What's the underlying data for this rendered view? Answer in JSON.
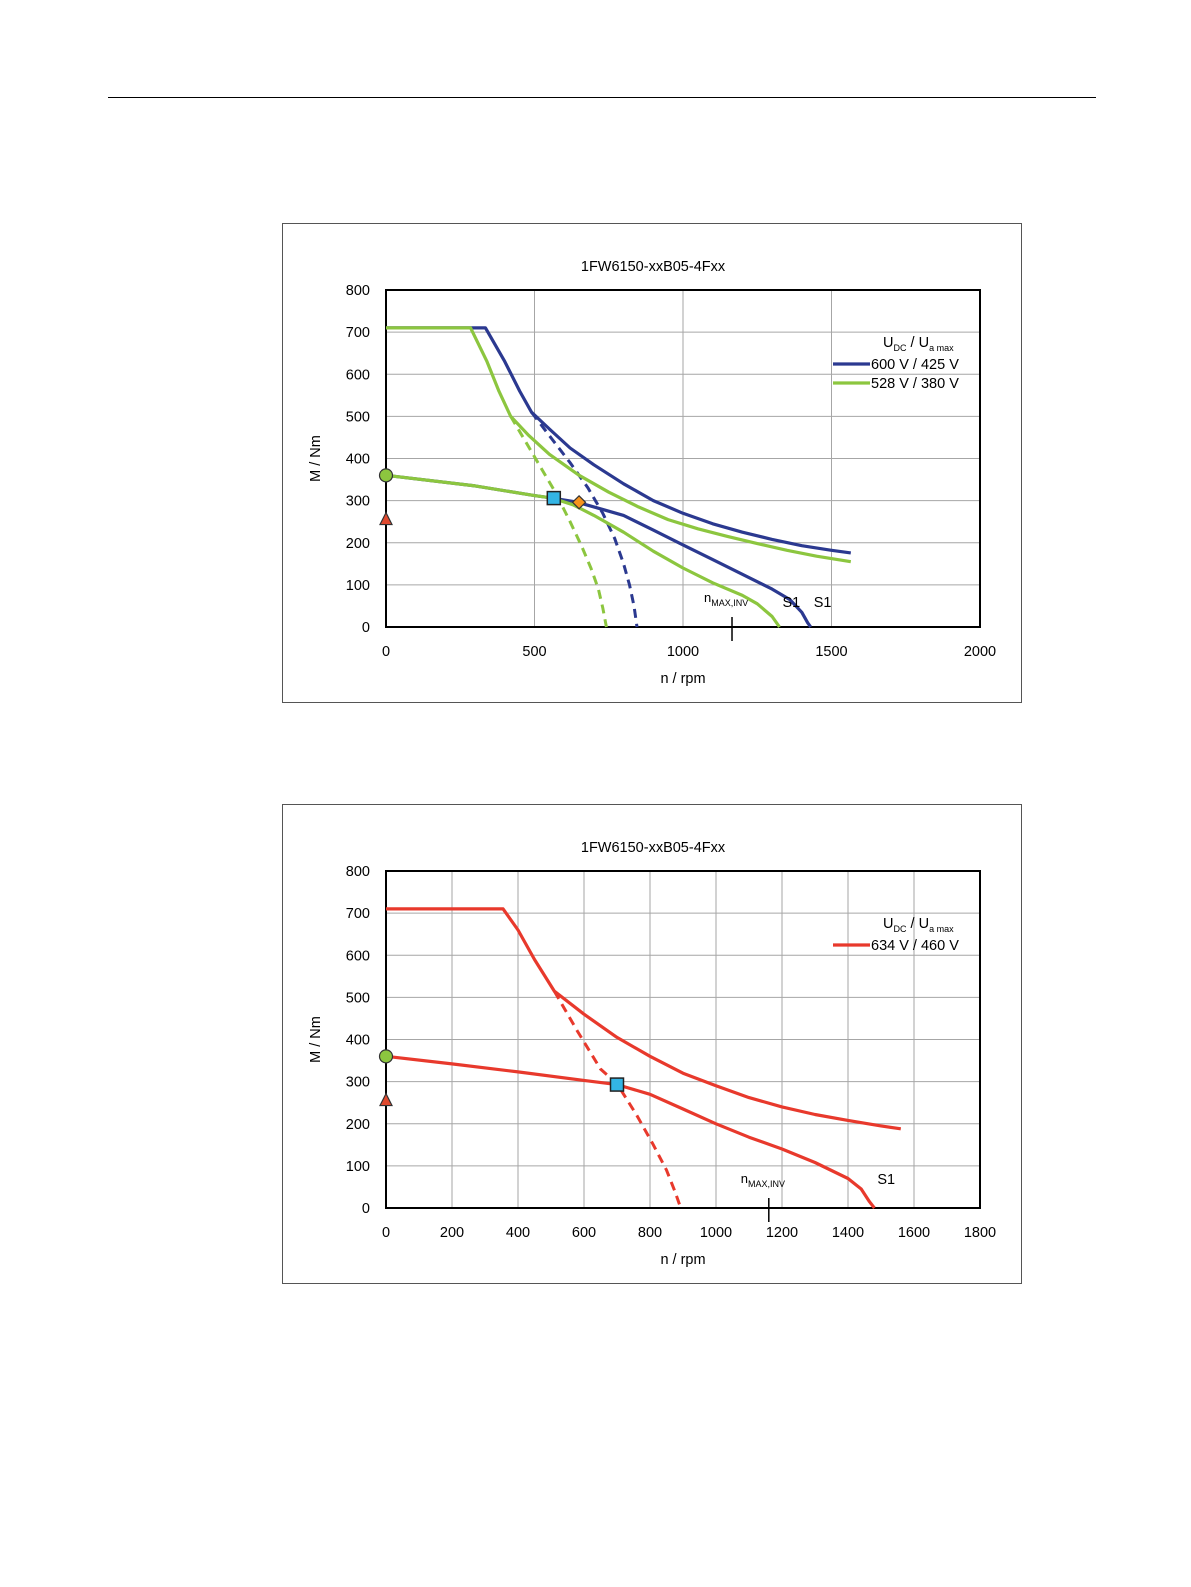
{
  "chart_data": [
    {
      "type": "line",
      "title": "1FW6150-xxB05-4Fxx",
      "xlabel": "n / rpm",
      "ylabel": "M / Nm",
      "xlim": [
        0,
        2000
      ],
      "ylim": [
        0,
        800
      ],
      "xticks": [
        0,
        500,
        1000,
        1500,
        2000
      ],
      "yticks": [
        0,
        100,
        200,
        300,
        400,
        500,
        600,
        700,
        800
      ],
      "grid": true,
      "legend": {
        "position": "top-right",
        "header": {
          "main": "U",
          "sub1": "DC",
          "sep": "/",
          "main2": "U",
          "sub2": "a max"
        }
      },
      "annotations": {
        "nmax": {
          "x": 1165,
          "label": "n",
          "sub": "MAX,INV"
        },
        "s1_labels": [
          "S1",
          "S1"
        ]
      },
      "series": [
        {
          "name": "600 V / 425 V",
          "color": "#2b3990",
          "max_curve": [
            [
              0,
              710
            ],
            [
              335,
              710
            ],
            [
              400,
              630
            ],
            [
              450,
              560
            ],
            [
              490,
              510
            ],
            [
              550,
              470
            ],
            [
              620,
              425
            ],
            [
              700,
              385
            ],
            [
              800,
              340
            ],
            [
              900,
              300
            ],
            [
              1000,
              270
            ],
            [
              1100,
              245
            ],
            [
              1200,
              225
            ],
            [
              1300,
              208
            ],
            [
              1400,
              193
            ],
            [
              1500,
              182
            ],
            [
              1565,
              176
            ]
          ],
          "max_dashed": [
            [
              490,
              510
            ],
            [
              560,
              445
            ],
            [
              620,
              390
            ],
            [
              680,
              330
            ],
            [
              730,
              270
            ],
            [
              770,
              210
            ],
            [
              800,
              150
            ],
            [
              820,
              100
            ],
            [
              835,
              50
            ],
            [
              845,
              0
            ]
          ],
          "s1_curve": [
            [
              0,
              360
            ],
            [
              300,
              335
            ],
            [
              500,
              312
            ],
            [
              560,
              306
            ],
            [
              640,
              297
            ],
            [
              700,
              285
            ],
            [
              800,
              265
            ],
            [
              900,
              230
            ],
            [
              1000,
              195
            ],
            [
              1100,
              160
            ],
            [
              1200,
              125
            ],
            [
              1300,
              90
            ],
            [
              1360,
              65
            ],
            [
              1400,
              35
            ],
            [
              1420,
              10
            ],
            [
              1430,
              0
            ]
          ],
          "s1_dashed": null
        },
        {
          "name": "528 V / 380 V",
          "color": "#8cc63f",
          "max_curve": [
            [
              0,
              710
            ],
            [
              285,
              710
            ],
            [
              340,
              630
            ],
            [
              380,
              560
            ],
            [
              420,
              500
            ],
            [
              480,
              455
            ],
            [
              550,
              410
            ],
            [
              650,
              360
            ],
            [
              750,
              320
            ],
            [
              850,
              285
            ],
            [
              950,
              255
            ],
            [
              1050,
              233
            ],
            [
              1150,
              215
            ],
            [
              1250,
              198
            ],
            [
              1350,
              182
            ],
            [
              1450,
              168
            ],
            [
              1565,
              155
            ]
          ],
          "max_dashed": [
            [
              420,
              500
            ],
            [
              470,
              440
            ],
            [
              520,
              380
            ],
            [
              570,
              320
            ],
            [
              620,
              250
            ],
            [
              660,
              190
            ],
            [
              690,
              140
            ],
            [
              715,
              90
            ],
            [
              730,
              45
            ],
            [
              742,
              0
            ]
          ],
          "s1_curve": [
            [
              0,
              360
            ],
            [
              300,
              335
            ],
            [
              500,
              312
            ],
            [
              560,
              306
            ],
            [
              630,
              290
            ],
            [
              700,
              265
            ],
            [
              800,
              225
            ],
            [
              900,
              180
            ],
            [
              1000,
              140
            ],
            [
              1100,
              105
            ],
            [
              1200,
              75
            ],
            [
              1250,
              55
            ],
            [
              1300,
              25
            ],
            [
              1325,
              0
            ]
          ],
          "s1_dashed": null
        }
      ],
      "markers": [
        {
          "type": "circle",
          "x": 0,
          "y": 360,
          "color": "#8cc63f"
        },
        {
          "type": "triangle",
          "x": 0,
          "y": 255,
          "color": "#e04a2f"
        },
        {
          "type": "square",
          "x": 565,
          "y": 306,
          "color": "#33b5e5"
        },
        {
          "type": "diamond",
          "x": 650,
          "y": 296,
          "color": "#f7941d"
        }
      ]
    },
    {
      "type": "line",
      "title": "1FW6150-xxB05-4Fxx",
      "xlabel": "n / rpm",
      "ylabel": "M / Nm",
      "xlim": [
        0,
        1800
      ],
      "ylim": [
        0,
        800
      ],
      "xticks": [
        0,
        200,
        400,
        600,
        800,
        1000,
        1200,
        1400,
        1600,
        1800
      ],
      "yticks": [
        0,
        100,
        200,
        300,
        400,
        500,
        600,
        700,
        800
      ],
      "grid": true,
      "legend": {
        "position": "top-right",
        "header": {
          "main": "U",
          "sub1": "DC",
          "sep": "/",
          "main2": "U",
          "sub2": "a max"
        }
      },
      "annotations": {
        "nmax": {
          "x": 1160,
          "label": "n",
          "sub": "MAX,INV"
        },
        "s1_labels": [
          "S1"
        ]
      },
      "series": [
        {
          "name": "634 V / 460 V",
          "color": "#e8392c",
          "max_curve": [
            [
              0,
              710
            ],
            [
              355,
              710
            ],
            [
              400,
              660
            ],
            [
              450,
              590
            ],
            [
              510,
              515
            ],
            [
              600,
              460
            ],
            [
              700,
              405
            ],
            [
              800,
              360
            ],
            [
              900,
              320
            ],
            [
              1000,
              290
            ],
            [
              1100,
              262
            ],
            [
              1200,
              240
            ],
            [
              1300,
              222
            ],
            [
              1400,
              208
            ],
            [
              1500,
              195
            ],
            [
              1560,
              188
            ]
          ],
          "max_dashed": [
            [
              510,
              515
            ],
            [
              580,
              420
            ],
            [
              650,
              330
            ],
            [
              700,
              295
            ],
            [
              760,
              220
            ],
            [
              810,
              150
            ],
            [
              850,
              90
            ],
            [
              875,
              40
            ],
            [
              893,
              0
            ]
          ],
          "s1_curve": [
            [
              0,
              360
            ],
            [
              200,
              342
            ],
            [
              400,
              323
            ],
            [
              600,
              303
            ],
            [
              700,
              293
            ],
            [
              800,
              270
            ],
            [
              900,
              235
            ],
            [
              1000,
              200
            ],
            [
              1100,
              168
            ],
            [
              1200,
              140
            ],
            [
              1300,
              108
            ],
            [
              1400,
              70
            ],
            [
              1440,
              45
            ],
            [
              1465,
              15
            ],
            [
              1480,
              0
            ]
          ],
          "s1_dashed": null
        }
      ],
      "markers": [
        {
          "type": "circle",
          "x": 0,
          "y": 360,
          "color": "#8cc63f"
        },
        {
          "type": "triangle",
          "x": 0,
          "y": 255,
          "color": "#e04a2f"
        },
        {
          "type": "square",
          "x": 700,
          "y": 293,
          "color": "#33b5e5"
        }
      ]
    }
  ]
}
